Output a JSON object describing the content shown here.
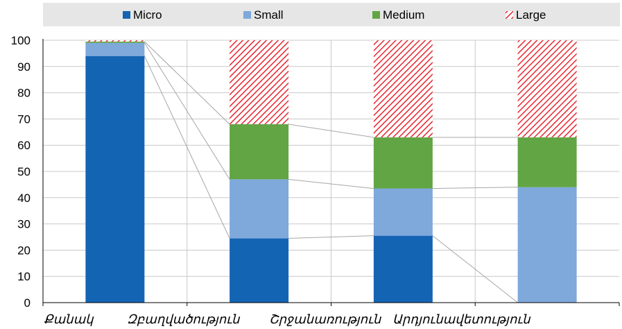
{
  "chart_data": {
    "type": "bar",
    "stacked": true,
    "categories": [
      "Քանակ",
      "Զբաղվածություն",
      "Շրջանառություն",
      "Արդյունավետություն"
    ],
    "series": [
      {
        "name": "Micro",
        "values": [
          94,
          24.5,
          25.5,
          0
        ]
      },
      {
        "name": "Small",
        "values": [
          5,
          22.5,
          18,
          44
        ]
      },
      {
        "name": "Medium",
        "values": [
          0.5,
          21,
          19.5,
          19
        ]
      },
      {
        "name": "Large",
        "values": [
          0.5,
          32,
          37,
          37
        ]
      }
    ],
    "ylim": [
      0,
      100
    ],
    "yticks": [
      0,
      10,
      20,
      30,
      40,
      50,
      60,
      70,
      80,
      90,
      100
    ],
    "legend_position": "top",
    "grid": true,
    "colors": {
      "Micro": "#1464b4",
      "Small": "#7fa8db",
      "Medium": "#62a544",
      "Large": "#e8262f",
      "legend_bg": "#e6e6e6",
      "grid": "#c8c8c8",
      "connector": "#a6a6a6"
    }
  }
}
